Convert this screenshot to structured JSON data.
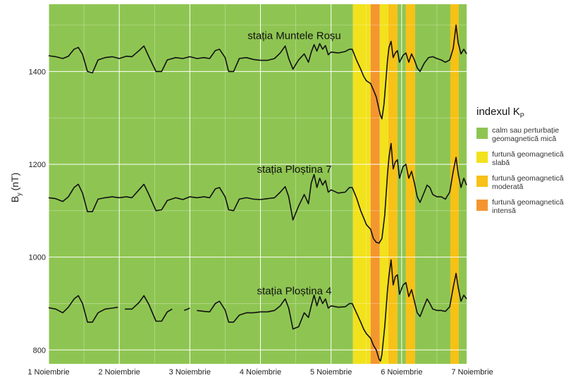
{
  "chart_data": {
    "type": "line",
    "ylabel_main": "B",
    "ylabel_sub": "y",
    "ylabel_unit": "(nT)",
    "ylim": [
      770,
      1545
    ],
    "xlim": [
      0,
      5.92
    ],
    "yticks": [
      800,
      1000,
      1200,
      1400
    ],
    "xticks": [
      {
        "value": 0,
        "label": "1 Noiembrie"
      },
      {
        "value": 1,
        "label": "2 Noiembrie"
      },
      {
        "value": 2,
        "label": "3 Noiembrie"
      },
      {
        "value": 3,
        "label": "4 Noiembrie"
      },
      {
        "value": 4,
        "label": "5 Noiembrie"
      },
      {
        "value": 5,
        "label": "6 Noiembrie"
      },
      {
        "value": 6,
        "label": "7 Noiembrie"
      }
    ],
    "kp_bands": [
      {
        "start": 0.0,
        "end": 4.31,
        "level": "calm"
      },
      {
        "start": 4.31,
        "end": 4.56,
        "level": "slaba"
      },
      {
        "start": 4.56,
        "end": 4.69,
        "level": "intensa"
      },
      {
        "start": 4.69,
        "end": 4.81,
        "level": "slaba"
      },
      {
        "start": 4.81,
        "end": 4.94,
        "level": "moderata"
      },
      {
        "start": 4.94,
        "end": 5.06,
        "level": "calm"
      },
      {
        "start": 5.06,
        "end": 5.19,
        "level": "moderata"
      },
      {
        "start": 5.19,
        "end": 5.69,
        "level": "calm"
      },
      {
        "start": 5.69,
        "end": 5.81,
        "level": "moderata"
      },
      {
        "start": 5.81,
        "end": 5.92,
        "level": "calm"
      }
    ],
    "legend": {
      "title_main": "indexul K",
      "title_sub": "P",
      "entries": [
        {
          "level": "calm",
          "label": "calm sau perturbație geomagnetică mică",
          "color": "#8ec552"
        },
        {
          "level": "slaba",
          "label": "furtună geomagnetică slabă",
          "color": "#f2e21c"
        },
        {
          "level": "moderata",
          "label": "furtună geomagnetică moderată",
          "color": "#f7c116"
        },
        {
          "level": "intensa",
          "label": "furtună geomagnetică intensă",
          "color": "#f4962f"
        }
      ]
    },
    "series": [
      {
        "name": "stația Muntele Roșu",
        "points": [
          [
            0.0,
            1434
          ],
          [
            0.1,
            1432
          ],
          [
            0.2,
            1428
          ],
          [
            0.28,
            1433
          ],
          [
            0.36,
            1448
          ],
          [
            0.42,
            1452
          ],
          [
            0.48,
            1437
          ],
          [
            0.55,
            1400
          ],
          [
            0.62,
            1397
          ],
          [
            0.7,
            1425
          ],
          [
            0.8,
            1430
          ],
          [
            0.9,
            1432
          ],
          [
            1.0,
            1428
          ],
          [
            1.1,
            1433
          ],
          [
            1.18,
            1432
          ],
          [
            1.28,
            1445
          ],
          [
            1.35,
            1455
          ],
          [
            1.42,
            1432
          ],
          [
            1.52,
            1400
          ],
          [
            1.6,
            1400
          ],
          [
            1.68,
            1425
          ],
          [
            1.8,
            1430
          ],
          [
            1.9,
            1428
          ],
          [
            2.0,
            1432
          ],
          [
            2.1,
            1428
          ],
          [
            2.2,
            1430
          ],
          [
            2.28,
            1428
          ],
          [
            2.36,
            1445
          ],
          [
            2.42,
            1448
          ],
          [
            2.5,
            1430
          ],
          [
            2.55,
            1400
          ],
          [
            2.62,
            1400
          ],
          [
            2.7,
            1428
          ],
          [
            2.8,
            1430
          ],
          [
            2.9,
            1426
          ],
          [
            3.0,
            1424
          ],
          [
            3.1,
            1424
          ],
          [
            3.2,
            1428
          ],
          [
            3.28,
            1440
          ],
          [
            3.35,
            1455
          ],
          [
            3.4,
            1428
          ],
          [
            3.46,
            1405
          ],
          [
            3.54,
            1425
          ],
          [
            3.62,
            1438
          ],
          [
            3.68,
            1420
          ],
          [
            3.72,
            1442
          ],
          [
            3.76,
            1458
          ],
          [
            3.8,
            1444
          ],
          [
            3.84,
            1460
          ],
          [
            3.88,
            1448
          ],
          [
            3.92,
            1456
          ],
          [
            3.96,
            1436
          ],
          [
            4.0,
            1442
          ],
          [
            4.1,
            1440
          ],
          [
            4.2,
            1443
          ],
          [
            4.26,
            1448
          ],
          [
            4.3,
            1448
          ],
          [
            4.36,
            1425
          ],
          [
            4.42,
            1405
          ],
          [
            4.46,
            1390
          ],
          [
            4.5,
            1380
          ],
          [
            4.56,
            1374
          ],
          [
            4.6,
            1360
          ],
          [
            4.64,
            1345
          ],
          [
            4.68,
            1318
          ],
          [
            4.7,
            1305
          ],
          [
            4.72,
            1298
          ],
          [
            4.75,
            1330
          ],
          [
            4.8,
            1425
          ],
          [
            4.82,
            1452
          ],
          [
            4.85,
            1465
          ],
          [
            4.88,
            1430
          ],
          [
            4.91,
            1440
          ],
          [
            4.94,
            1445
          ],
          [
            4.97,
            1420
          ],
          [
            5.02,
            1435
          ],
          [
            5.06,
            1440
          ],
          [
            5.1,
            1420
          ],
          [
            5.14,
            1438
          ],
          [
            5.18,
            1425
          ],
          [
            5.22,
            1408
          ],
          [
            5.26,
            1400
          ],
          [
            5.32,
            1418
          ],
          [
            5.38,
            1430
          ],
          [
            5.44,
            1432
          ],
          [
            5.5,
            1428
          ],
          [
            5.56,
            1425
          ],
          [
            5.62,
            1420
          ],
          [
            5.68,
            1425
          ],
          [
            5.73,
            1450
          ],
          [
            5.77,
            1500
          ],
          [
            5.8,
            1462
          ],
          [
            5.84,
            1438
          ],
          [
            5.88,
            1448
          ],
          [
            5.92,
            1438
          ]
        ],
        "label_x": 2.98,
        "label_y": 1470
      },
      {
        "name": "stația Ploștina 7",
        "points": [
          [
            0.0,
            1128
          ],
          [
            0.1,
            1126
          ],
          [
            0.2,
            1120
          ],
          [
            0.28,
            1130
          ],
          [
            0.36,
            1150
          ],
          [
            0.42,
            1157
          ],
          [
            0.48,
            1138
          ],
          [
            0.55,
            1098
          ],
          [
            0.62,
            1098
          ],
          [
            0.7,
            1125
          ],
          [
            0.8,
            1128
          ],
          [
            0.9,
            1130
          ],
          [
            1.0,
            1128
          ],
          [
            1.1,
            1130
          ],
          [
            1.18,
            1128
          ],
          [
            1.28,
            1145
          ],
          [
            1.35,
            1157
          ],
          [
            1.42,
            1135
          ],
          [
            1.52,
            1100
          ],
          [
            1.6,
            1102
          ],
          [
            1.68,
            1122
          ],
          [
            1.8,
            1128
          ],
          [
            1.9,
            1124
          ],
          [
            2.0,
            1130
          ],
          [
            2.1,
            1128
          ],
          [
            2.2,
            1130
          ],
          [
            2.28,
            1128
          ],
          [
            2.36,
            1147
          ],
          [
            2.42,
            1150
          ],
          [
            2.5,
            1130
          ],
          [
            2.55,
            1102
          ],
          [
            2.62,
            1100
          ],
          [
            2.7,
            1125
          ],
          [
            2.8,
            1128
          ],
          [
            2.9,
            1125
          ],
          [
            3.0,
            1124
          ],
          [
            3.1,
            1126
          ],
          [
            3.2,
            1128
          ],
          [
            3.28,
            1140
          ],
          [
            3.35,
            1152
          ],
          [
            3.4,
            1130
          ],
          [
            3.46,
            1080
          ],
          [
            3.54,
            1110
          ],
          [
            3.62,
            1135
          ],
          [
            3.68,
            1115
          ],
          [
            3.72,
            1160
          ],
          [
            3.76,
            1178
          ],
          [
            3.8,
            1150
          ],
          [
            3.84,
            1170
          ],
          [
            3.88,
            1155
          ],
          [
            3.92,
            1165
          ],
          [
            3.96,
            1140
          ],
          [
            4.0,
            1145
          ],
          [
            4.1,
            1138
          ],
          [
            4.2,
            1140
          ],
          [
            4.26,
            1150
          ],
          [
            4.3,
            1150
          ],
          [
            4.36,
            1128
          ],
          [
            4.42,
            1100
          ],
          [
            4.46,
            1085
          ],
          [
            4.5,
            1070
          ],
          [
            4.56,
            1060
          ],
          [
            4.6,
            1040
          ],
          [
            4.64,
            1032
          ],
          [
            4.68,
            1030
          ],
          [
            4.72,
            1040
          ],
          [
            4.76,
            1090
          ],
          [
            4.8,
            1180
          ],
          [
            4.82,
            1215
          ],
          [
            4.85,
            1245
          ],
          [
            4.88,
            1190
          ],
          [
            4.91,
            1205
          ],
          [
            4.94,
            1210
          ],
          [
            4.97,
            1170
          ],
          [
            5.02,
            1195
          ],
          [
            5.06,
            1200
          ],
          [
            5.1,
            1170
          ],
          [
            5.14,
            1185
          ],
          [
            5.18,
            1160
          ],
          [
            5.22,
            1130
          ],
          [
            5.26,
            1118
          ],
          [
            5.32,
            1140
          ],
          [
            5.36,
            1155
          ],
          [
            5.4,
            1150
          ],
          [
            5.44,
            1135
          ],
          [
            5.5,
            1130
          ],
          [
            5.56,
            1130
          ],
          [
            5.62,
            1125
          ],
          [
            5.68,
            1140
          ],
          [
            5.73,
            1185
          ],
          [
            5.77,
            1215
          ],
          [
            5.8,
            1180
          ],
          [
            5.84,
            1150
          ],
          [
            5.88,
            1170
          ],
          [
            5.92,
            1155
          ]
        ],
        "label_x": 2.98,
        "label_y": 1182
      },
      {
        "name": "stația Ploștina 4",
        "points": [
          [
            0.0,
            891
          ],
          [
            0.1,
            888
          ],
          [
            0.2,
            880
          ],
          [
            0.28,
            892
          ],
          [
            0.36,
            910
          ],
          [
            0.42,
            917
          ],
          [
            0.48,
            900
          ],
          [
            0.55,
            860
          ],
          [
            0.62,
            860
          ],
          [
            0.7,
            880
          ],
          [
            0.8,
            888
          ],
          [
            0.9,
            890
          ],
          [
            0.98,
            892
          ],
          [
            1.08,
            888
          ],
          [
            1.18,
            888
          ],
          [
            1.28,
            902
          ],
          [
            1.35,
            917
          ],
          [
            1.42,
            898
          ],
          [
            1.52,
            862
          ],
          [
            1.6,
            862
          ],
          [
            1.68,
            882
          ],
          [
            1.75,
            888
          ],
          [
            1.92,
            885
          ],
          [
            2.0,
            890
          ],
          [
            2.1,
            885
          ],
          [
            2.2,
            883
          ],
          [
            2.28,
            882
          ],
          [
            2.36,
            900
          ],
          [
            2.42,
            905
          ],
          [
            2.5,
            886
          ],
          [
            2.55,
            860
          ],
          [
            2.62,
            860
          ],
          [
            2.7,
            875
          ],
          [
            2.8,
            880
          ],
          [
            2.9,
            880
          ],
          [
            3.0,
            882
          ],
          [
            3.1,
            882
          ],
          [
            3.2,
            885
          ],
          [
            3.28,
            895
          ],
          [
            3.35,
            910
          ],
          [
            3.4,
            890
          ],
          [
            3.46,
            845
          ],
          [
            3.54,
            850
          ],
          [
            3.62,
            880
          ],
          [
            3.68,
            870
          ],
          [
            3.72,
            895
          ],
          [
            3.76,
            918
          ],
          [
            3.8,
            895
          ],
          [
            3.84,
            915
          ],
          [
            3.88,
            900
          ],
          [
            3.92,
            910
          ],
          [
            3.96,
            890
          ],
          [
            4.0,
            895
          ],
          [
            4.1,
            892
          ],
          [
            4.2,
            893
          ],
          [
            4.26,
            900
          ],
          [
            4.3,
            900
          ],
          [
            4.36,
            880
          ],
          [
            4.42,
            860
          ],
          [
            4.46,
            845
          ],
          [
            4.5,
            835
          ],
          [
            4.56,
            825
          ],
          [
            4.6,
            810
          ],
          [
            4.64,
            800
          ],
          [
            4.68,
            780
          ],
          [
            4.7,
            776
          ],
          [
            4.72,
            790
          ],
          [
            4.76,
            850
          ],
          [
            4.8,
            930
          ],
          [
            4.82,
            960
          ],
          [
            4.85,
            994
          ],
          [
            4.88,
            940
          ],
          [
            4.91,
            958
          ],
          [
            4.94,
            962
          ],
          [
            4.97,
            920
          ],
          [
            5.02,
            940
          ],
          [
            5.06,
            945
          ],
          [
            5.1,
            915
          ],
          [
            5.14,
            930
          ],
          [
            5.18,
            905
          ],
          [
            5.22,
            880
          ],
          [
            5.26,
            872
          ],
          [
            5.32,
            895
          ],
          [
            5.36,
            910
          ],
          [
            5.4,
            900
          ],
          [
            5.44,
            888
          ],
          [
            5.5,
            885
          ],
          [
            5.56,
            885
          ],
          [
            5.62,
            883
          ],
          [
            5.68,
            893
          ],
          [
            5.73,
            935
          ],
          [
            5.77,
            965
          ],
          [
            5.8,
            935
          ],
          [
            5.84,
            905
          ],
          [
            5.88,
            918
          ],
          [
            5.92,
            910
          ]
        ],
        "gaps_after_index": [
          12,
          21,
          23
        ],
        "label_x": 2.98,
        "label_y": 920
      }
    ]
  }
}
